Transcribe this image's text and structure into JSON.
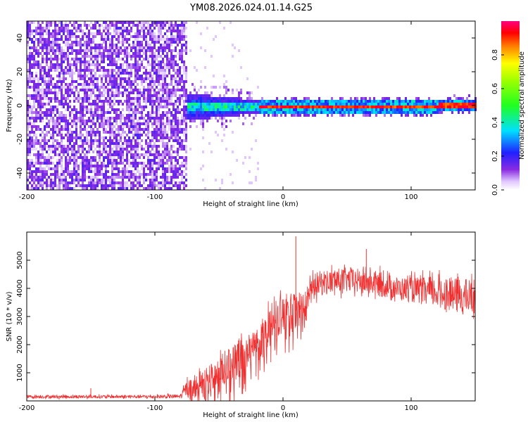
{
  "title": "YM08.2026.024.01.14.G25",
  "chart_data": [
    {
      "type": "heatmap",
      "xlabel": "Height of straight line (km)",
      "ylabel": "Frequency (Hz)",
      "xlim": [
        -200,
        150
      ],
      "ylim": [
        -50,
        50
      ],
      "xticks": [
        -200,
        -100,
        0,
        100
      ],
      "xtick_labels": [
        "-200",
        "-100",
        "0",
        "100"
      ],
      "yticks": [
        -40,
        -20,
        0,
        20,
        40
      ],
      "ytick_labels": [
        "-40",
        "-20",
        "0",
        "20",
        "40"
      ],
      "colorbar": {
        "label": "Normalized spectral amplitude",
        "range": [
          0,
          1
        ],
        "ticks": [
          0.0,
          0.2,
          0.4,
          0.6,
          0.8
        ],
        "tick_labels": [
          "0.0",
          "0.2",
          "0.4",
          "0.6",
          "0.8"
        ]
      },
      "description_regions": [
        {
          "x_range": [
            -200,
            -75
          ],
          "pattern": "broadband noise",
          "amplitude": [
            0.02,
            0.2
          ]
        },
        {
          "x_range": [
            -75,
            -20
          ],
          "pattern": "signal band near 0 Hz, width about ±8 Hz",
          "amplitude": [
            0.2,
            0.45
          ]
        },
        {
          "x_range": [
            -20,
            150
          ],
          "pattern": "narrow line at 0 Hz",
          "amplitude": [
            0.8,
            1.0
          ]
        }
      ]
    },
    {
      "type": "line",
      "xlabel": "Height of straight line (km)",
      "ylabel": "SNR (10 * v/v)",
      "xlim": [
        -200,
        150
      ],
      "ylim": [
        0,
        6000
      ],
      "xticks": [
        -200,
        -100,
        0,
        100
      ],
      "xtick_labels": [
        "-200",
        "-100",
        "0",
        "100"
      ],
      "yticks": [
        1000,
        2000,
        3000,
        4000,
        5000
      ],
      "ytick_labels": [
        "1000",
        "2000",
        "3000",
        "4000",
        "5000"
      ],
      "color": "#f03030",
      "series_envelope": {
        "x": [
          -200,
          -150,
          -100,
          -80,
          -75,
          -60,
          -50,
          -40,
          -30,
          -20,
          -15,
          -10,
          -5,
          0,
          5,
          10,
          15,
          20,
          25,
          30,
          40,
          50,
          60,
          70,
          80,
          90,
          100,
          110,
          120,
          130,
          140,
          150
        ],
        "mean": [
          150,
          150,
          150,
          160,
          450,
          700,
          1000,
          1300,
          1600,
          2000,
          2300,
          2600,
          2900,
          3000,
          3100,
          3200,
          3300,
          3700,
          4100,
          4200,
          4250,
          4300,
          4250,
          4200,
          4100,
          4000,
          3950,
          3900,
          3850,
          3800,
          3700,
          3700
        ],
        "spread": [
          60,
          60,
          60,
          80,
          300,
          500,
          600,
          700,
          700,
          700,
          700,
          700,
          700,
          700,
          700,
          700,
          600,
          500,
          450,
          450,
          450,
          450,
          450,
          450,
          450,
          400,
          450,
          500,
          550,
          600,
          650,
          650
        ]
      },
      "peaks": [
        {
          "x": 10,
          "y": 5850
        },
        {
          "x": 65,
          "y": 5400
        },
        {
          "x": -150,
          "y": 450
        }
      ]
    }
  ]
}
